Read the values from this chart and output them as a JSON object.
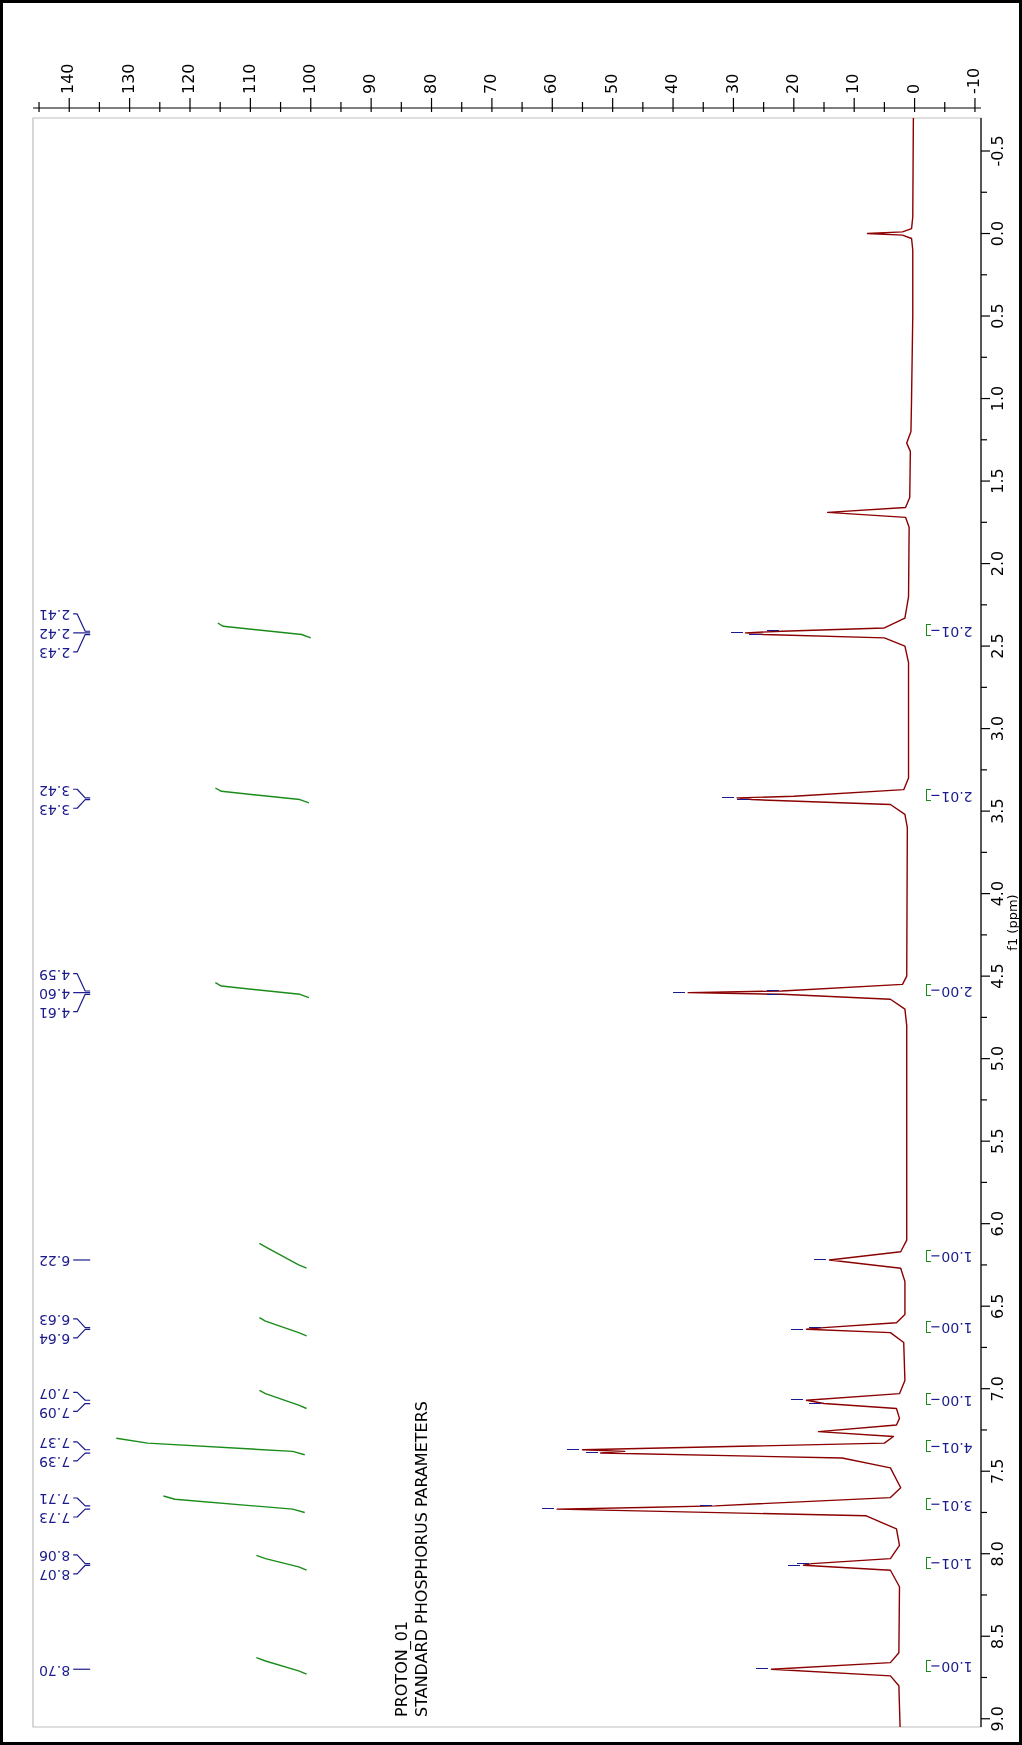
{
  "chart_data": {
    "type": "line",
    "orientation": "horizontal",
    "ylabel": "f1 (ppm)",
    "legend": false,
    "grid": false,
    "marker": "none",
    "line_style": "solid",
    "xlim": [
      146,
      -11
    ],
    "ylim": [
      9.05,
      -0.7
    ],
    "xticks": [
      -10,
      {
        "value": -5,
        "label": null
      },
      0,
      {
        "value": 5,
        "label": null
      },
      10,
      {
        "value": 15,
        "label": null
      },
      20,
      {
        "value": 25,
        "label": null
      },
      30,
      {
        "value": 35,
        "label": null
      },
      40,
      {
        "value": 45,
        "label": null
      },
      50,
      {
        "value": 55,
        "label": null
      },
      60,
      {
        "value": 65,
        "label": null
      },
      70,
      {
        "value": 75,
        "label": null
      },
      80,
      {
        "value": 85,
        "label": null
      },
      90,
      {
        "value": 95,
        "label": null
      },
      100,
      {
        "value": 105,
        "label": null
      },
      110,
      {
        "value": 115,
        "label": null
      },
      120,
      {
        "value": 125,
        "label": null
      },
      130,
      {
        "value": 135,
        "label": null
      },
      140,
      {
        "value": 145,
        "label": null
      }
    ],
    "yticks": [
      {
        "value": -0.5,
        "label": "-0.5"
      },
      {
        "value": -0.25,
        "label": null
      },
      {
        "value": 0,
        "label": "0.0"
      },
      {
        "value": 0.25,
        "label": null
      },
      {
        "value": 0.5,
        "label": "0.5"
      },
      {
        "value": 0.75,
        "label": null
      },
      {
        "value": 1,
        "label": "1.0"
      },
      {
        "value": 1.25,
        "label": null
      },
      {
        "value": 1.5,
        "label": "1.5"
      },
      {
        "value": 1.75,
        "label": null
      },
      {
        "value": 2,
        "label": "2.0"
      },
      {
        "value": 2.25,
        "label": null
      },
      {
        "value": 2.5,
        "label": "2.5"
      },
      {
        "value": 2.75,
        "label": null
      },
      {
        "value": 3,
        "label": "3.0"
      },
      {
        "value": 3.25,
        "label": null
      },
      {
        "value": 3.5,
        "label": "3.5"
      },
      {
        "value": 3.75,
        "label": null
      },
      {
        "value": 4,
        "label": "4.0"
      },
      {
        "value": 4.25,
        "label": null
      },
      {
        "value": 4.5,
        "label": "4.5"
      },
      {
        "value": 4.75,
        "label": null
      },
      {
        "value": 5,
        "label": "5.0"
      },
      {
        "value": 5.25,
        "label": null
      },
      {
        "value": 5.5,
        "label": "5.5"
      },
      {
        "value": 5.75,
        "label": null
      },
      {
        "value": 6,
        "label": "6.0"
      },
      {
        "value": 6.25,
        "label": null
      },
      {
        "value": 6.5,
        "label": "6.5"
      },
      {
        "value": 6.75,
        "label": null
      },
      {
        "value": 7,
        "label": "7.0"
      },
      {
        "value": 7.25,
        "label": null
      },
      {
        "value": 7.5,
        "label": "7.5"
      },
      {
        "value": 7.75,
        "label": null
      },
      {
        "value": 8,
        "label": "8.0"
      },
      {
        "value": 8.25,
        "label": null
      },
      {
        "value": 8.5,
        "label": "8.5"
      },
      {
        "value": 8.75,
        "label": null
      },
      {
        "value": 9,
        "label": "9.0"
      }
    ],
    "series": [
      {
        "color": "#8b0000",
        "x": [
          -0.7,
          -0.1,
          -0.03,
          -0.01,
          0,
          0.01,
          0.03,
          0.1,
          0.5,
          1,
          1.2,
          1.27,
          1.32,
          1.6,
          1.66,
          1.69,
          1.72,
          1.78,
          2.2,
          2.33,
          2.39,
          2.41,
          2.42,
          2.43,
          2.45,
          2.5,
          2.6,
          3.3,
          3.37,
          3.41,
          3.42,
          3.43,
          3.46,
          3.52,
          3.6,
          4.5,
          4.55,
          4.59,
          4.6,
          4.61,
          4.64,
          4.7,
          4.8,
          6.1,
          6.17,
          6.22,
          6.27,
          6.35,
          6.55,
          6.6,
          6.63,
          6.64,
          6.66,
          6.72,
          6.95,
          7.03,
          7.07,
          7.09,
          7.12,
          7.18,
          7.22,
          7.26,
          7.29,
          7.33,
          7.37,
          7.38,
          7.39,
          7.42,
          7.48,
          7.6,
          7.66,
          7.71,
          7.72,
          7.73,
          7.77,
          7.85,
          7.95,
          8.03,
          8.06,
          8.07,
          8.1,
          8.2,
          8.6,
          8.66,
          8.7,
          8.74,
          8.8,
          9.05
        ],
        "values": [
          0.2,
          0.3,
          0.5,
          2,
          7.8,
          2,
          0.5,
          0.3,
          0.3,
          0.5,
          0.6,
          1.3,
          0.7,
          0.8,
          1.5,
          14.4,
          1.5,
          0.9,
          1,
          1.6,
          5,
          22,
          28,
          25,
          5,
          1.6,
          1,
          1,
          1.8,
          20,
          29.4,
          27,
          4,
          1.6,
          1.2,
          1.3,
          2,
          22,
          37.5,
          22,
          4,
          1.6,
          1.3,
          1.3,
          2.3,
          14.1,
          2.3,
          1.6,
          1.6,
          3,
          15,
          17.9,
          4,
          1.8,
          1.6,
          2.5,
          17.9,
          15,
          3,
          2.5,
          3,
          15.9,
          3.5,
          5,
          55,
          48,
          52,
          12,
          4,
          2.3,
          4,
          33,
          45,
          59.2,
          8,
          3,
          2.5,
          4,
          17,
          18.4,
          4,
          2.5,
          2.6,
          4,
          23.7,
          4,
          2.6,
          2.4
        ]
      },
      {
        "color": "#1a8c1a",
        "x": [
          2.36,
          2.38,
          2.43,
          2.45
        ],
        "values": [
          115.4,
          114.5,
          101.5,
          100
        ]
      },
      {
        "color": "#1a8c1a",
        "x": [
          3.36,
          3.38,
          3.43,
          3.45
        ],
        "values": [
          115.8,
          114.8,
          101.8,
          100.3
        ]
      },
      {
        "color": "#1a8c1a",
        "x": [
          4.54,
          4.56,
          4.61,
          4.63
        ],
        "values": [
          115.8,
          114.8,
          101.8,
          100.3
        ]
      },
      {
        "color": "#1a8c1a",
        "x": [
          6.12,
          6.14,
          6.25,
          6.27
        ],
        "values": [
          108.5,
          107.5,
          102,
          100.7
        ]
      },
      {
        "color": "#1a8c1a",
        "x": [
          6.57,
          6.59,
          6.66,
          6.68
        ],
        "values": [
          108.5,
          107.5,
          102,
          100.7
        ]
      },
      {
        "color": "#1a8c1a",
        "x": [
          7.01,
          7.03,
          7.1,
          7.12
        ],
        "values": [
          108.5,
          107.5,
          102,
          100.7
        ]
      },
      {
        "color": "#1a8c1a",
        "x": [
          7.3,
          7.33,
          7.38,
          7.4
        ],
        "values": [
          132.2,
          127,
          103,
          101
        ]
      },
      {
        "color": "#1a8c1a",
        "x": [
          7.65,
          7.67,
          7.73,
          7.75
        ],
        "values": [
          124.4,
          122.5,
          103,
          101
        ]
      },
      {
        "color": "#1a8c1a",
        "x": [
          8.01,
          8.03,
          8.08,
          8.1
        ],
        "values": [
          109,
          107.5,
          102,
          100.7
        ]
      },
      {
        "color": "#1a8c1a",
        "x": [
          8.63,
          8.65,
          8.71,
          8.73
        ],
        "values": [
          109,
          107.5,
          102,
          100.7
        ]
      }
    ],
    "annotations": [
      "PROTON_01",
      "STANDARD PHOSPHORUS PARAMETERS",
      "2.01",
      "2.01",
      "2.00",
      "1.00",
      "1.00",
      "1.00",
      "4.01",
      "3.01",
      "1.01",
      "1.00",
      "2.41",
      "2.42",
      "2.43",
      "3.42",
      "3.43",
      "4.59",
      "4.60",
      "4.61",
      "6.22",
      "6.63",
      "6.64",
      "7.07",
      "7.09",
      "7.37",
      "7.39",
      "7.71",
      "7.73",
      "8.06",
      "8.07",
      "8.70"
    ]
  }
}
